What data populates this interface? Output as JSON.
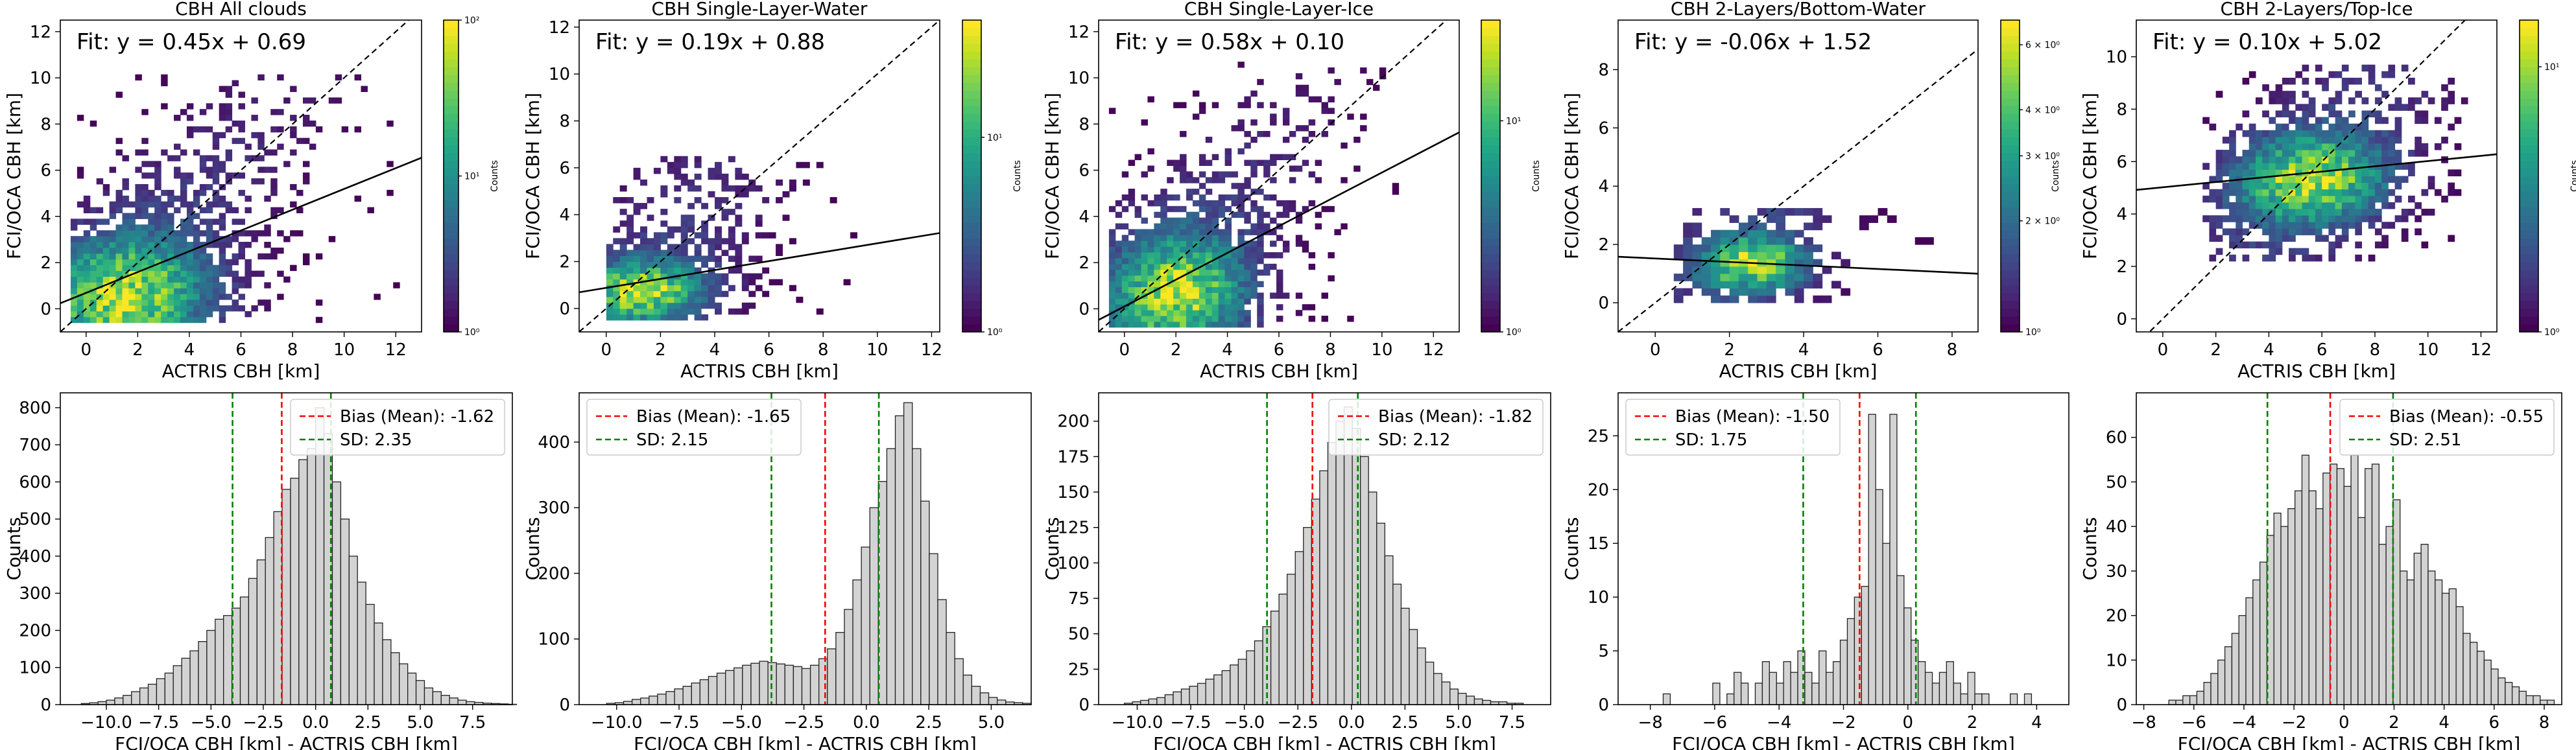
{
  "chart_data": [
    {
      "type": "heatmap",
      "title": "CBH All clouds",
      "xlabel": "ACTRIS CBH [km]",
      "ylabel": "FCI/OCA CBH [km]",
      "xlim": [
        -1,
        13
      ],
      "ylim": [
        -1,
        12.5
      ],
      "xticks": [
        0,
        2,
        4,
        6,
        8,
        10,
        12
      ],
      "yticks": [
        0,
        2,
        4,
        6,
        8,
        10,
        12
      ],
      "fit_label": "Fit: y = 0.45x + 0.69",
      "fit": {
        "slope": 0.45,
        "intercept": 0.69
      },
      "one_to_one_line": true,
      "cmap": "viridis",
      "color_scale": "log",
      "colorbar": {
        "label": "Counts",
        "ticks": [
          "10⁰",
          "10¹",
          "10²"
        ],
        "tick_values": [
          1,
          10,
          100
        ],
        "range": [
          1,
          100
        ]
      },
      "density": {
        "peak": [
          1.5,
          0.4
        ],
        "spread": [
          3.2,
          2.4
        ],
        "xrange": [
          -0.6,
          12.4
        ],
        "yrange": [
          -0.6,
          10
        ],
        "fill": 0.85
      }
    },
    {
      "type": "heatmap",
      "title": "CBH Single-Layer-Water",
      "xlabel": "ACTRIS CBH [km]",
      "ylabel": "FCI/OCA CBH [km]",
      "xlim": [
        -1,
        12.3
      ],
      "ylim": [
        -1,
        12.3
      ],
      "xticks": [
        0,
        2,
        4,
        6,
        8,
        10,
        12
      ],
      "yticks": [
        0,
        2,
        4,
        6,
        8,
        10,
        12
      ],
      "fit_label": "Fit: y = 0.19x + 0.88",
      "fit": {
        "slope": 0.19,
        "intercept": 0.88
      },
      "one_to_one_line": true,
      "cmap": "viridis",
      "color_scale": "log",
      "colorbar": {
        "label": "Counts",
        "ticks": [
          "10⁰",
          "10¹"
        ],
        "tick_values": [
          1,
          10
        ],
        "range": [
          1,
          40
        ]
      },
      "density": {
        "peak": [
          1.2,
          0.6
        ],
        "spread": [
          2.3,
          1.2
        ],
        "xrange": [
          0,
          10.5
        ],
        "yrange": [
          -0.5,
          6.5
        ],
        "fill": 0.7
      }
    },
    {
      "type": "heatmap",
      "title": "CBH Single-Layer-Ice",
      "xlabel": "ACTRIS CBH [km]",
      "ylabel": "FCI/OCA CBH [km]",
      "xlim": [
        -1,
        13
      ],
      "ylim": [
        -1,
        12.5
      ],
      "xticks": [
        0,
        2,
        4,
        6,
        8,
        10,
        12
      ],
      "yticks": [
        0,
        2,
        4,
        6,
        8,
        10,
        12
      ],
      "fit_label": "Fit: y = 0.58x + 0.10",
      "fit": {
        "slope": 0.58,
        "intercept": 0.1
      },
      "one_to_one_line": true,
      "cmap": "viridis",
      "color_scale": "log",
      "colorbar": {
        "label": "Counts",
        "ticks": [
          "10⁰",
          "10¹"
        ],
        "tick_values": [
          1,
          10
        ],
        "range": [
          1,
          30
        ]
      },
      "density": {
        "peak": [
          2.0,
          0.5
        ],
        "spread": [
          2.6,
          2.4
        ],
        "xrange": [
          -0.6,
          11
        ],
        "yrange": [
          -0.8,
          10.5
        ],
        "fill": 0.6
      }
    },
    {
      "type": "heatmap",
      "title": "CBH 2-Layers/Bottom-Water",
      "xlabel": "ACTRIS CBH [km]",
      "ylabel": "FCI/OCA CBH [km]",
      "xlim": [
        -1,
        8.7
      ],
      "ylim": [
        -1,
        9.7
      ],
      "xticks": [
        0,
        2,
        4,
        6,
        8
      ],
      "yticks": [
        0,
        2,
        4,
        6,
        8
      ],
      "fit_label": "Fit: y = -0.06x + 1.52",
      "fit": {
        "slope": -0.06,
        "intercept": 1.52
      },
      "one_to_one_line": true,
      "cmap": "viridis",
      "color_scale": "log",
      "colorbar": {
        "label": "Counts",
        "ticks": [
          "10⁰",
          "2 × 10⁰",
          "3 × 10⁰",
          "4 × 10⁰",
          "6 × 10⁰"
        ],
        "tick_values": [
          1,
          2,
          3,
          4,
          6
        ],
        "range": [
          1,
          7
        ]
      },
      "density": {
        "peak": [
          2.5,
          1.2
        ],
        "spread": [
          1.4,
          0.9
        ],
        "xrange": [
          0.5,
          7.3
        ],
        "yrange": [
          0,
          3.2
        ],
        "fill": 0.35
      }
    },
    {
      "type": "heatmap",
      "title": "CBH 2-Layers/Top-Ice",
      "xlabel": "ACTRIS CBH [km]",
      "ylabel": "FCI/OCA CBH [km]",
      "xlim": [
        -1,
        12.6
      ],
      "ylim": [
        -0.5,
        11.4
      ],
      "xticks": [
        0,
        2,
        4,
        6,
        8,
        10,
        12
      ],
      "yticks": [
        0,
        2,
        4,
        6,
        8,
        10
      ],
      "fit_label": "Fit: y = 0.10x + 5.02",
      "fit": {
        "slope": 0.1,
        "intercept": 5.02
      },
      "one_to_one_line": true,
      "cmap": "viridis",
      "color_scale": "log",
      "colorbar": {
        "label": "Counts",
        "ticks": [
          "10⁰",
          "10¹"
        ],
        "tick_values": [
          1,
          10
        ],
        "range": [
          1,
          15
        ]
      },
      "density": {
        "peak": [
          5.5,
          5.2
        ],
        "spread": [
          2.8,
          1.6
        ],
        "xrange": [
          1.5,
          11.5
        ],
        "yrange": [
          2.2,
          9.5
        ],
        "fill": 0.55
      }
    },
    {
      "type": "bar",
      "xlabel": "FCI/OCA CBH [km] - ACTRIS CBH [km]",
      "ylabel": "Counts",
      "xlim": [
        -12.2,
        9.4
      ],
      "ylim": [
        0,
        840
      ],
      "xticks": [
        -10.0,
        -7.5,
        -5.0,
        -2.5,
        0.0,
        2.5,
        5.0,
        7.5
      ],
      "xtick_labels": [
        "−10.0",
        "−7.5",
        "−5.0",
        "−2.5",
        "0.0",
        "2.5",
        "5.0",
        "7.5"
      ],
      "yticks": [
        0,
        100,
        200,
        300,
        400,
        500,
        600,
        700,
        800
      ],
      "bias": -1.62,
      "sd": 2.35,
      "legend": [
        {
          "label": "Bias (Mean): -1.62",
          "color": "#ff0000"
        },
        {
          "label": "SD: 2.35",
          "color": "#008000"
        }
      ],
      "legend_position": "top-right",
      "bin_start": -11.2,
      "bin_width": 0.4,
      "values": [
        3,
        5,
        8,
        12,
        18,
        25,
        35,
        45,
        55,
        70,
        85,
        105,
        125,
        145,
        170,
        200,
        230,
        240,
        260,
        290,
        340,
        390,
        450,
        520,
        580,
        610,
        660,
        690,
        800,
        730,
        600,
        500,
        400,
        330,
        270,
        220,
        175,
        140,
        110,
        85,
        65,
        45,
        35,
        25,
        18,
        12,
        8,
        6,
        4,
        3,
        2,
        1
      ]
    },
    {
      "type": "bar",
      "xlabel": "FCI/OCA CBH [km] - ACTRIS CBH [km]",
      "ylabel": "Counts",
      "xlim": [
        -11.5,
        6.6
      ],
      "ylim": [
        0,
        475
      ],
      "xticks": [
        -10.0,
        -7.5,
        -5.0,
        -2.5,
        0.0,
        2.5,
        5.0
      ],
      "xtick_labels": [
        "−10.0",
        "−7.5",
        "−5.0",
        "−2.5",
        "0.0",
        "2.5",
        "5.0"
      ],
      "yticks": [
        0,
        100,
        200,
        300,
        400
      ],
      "bias": -1.65,
      "sd": 2.15,
      "legend": [
        {
          "label": "Bias (Mean): -1.65",
          "color": "#ff0000"
        },
        {
          "label": "SD: 2.15",
          "color": "#008000"
        }
      ],
      "legend_position": "top-left",
      "bin_start": -10.4,
      "bin_width": 0.34,
      "values": [
        2,
        3,
        5,
        8,
        10,
        13,
        16,
        20,
        24,
        28,
        33,
        38,
        43,
        48,
        52,
        56,
        60,
        63,
        66,
        64,
        62,
        60,
        58,
        55,
        60,
        70,
        85,
        110,
        145,
        190,
        240,
        300,
        340,
        390,
        440,
        460,
        390,
        310,
        230,
        160,
        110,
        70,
        45,
        28,
        18,
        11,
        7,
        4,
        3,
        2
      ]
    },
    {
      "type": "bar",
      "xlabel": "FCI/OCA CBH [km] - ACTRIS CBH [km]",
      "ylabel": "Counts",
      "xlim": [
        -11.8,
        9.3
      ],
      "ylim": [
        0,
        220
      ],
      "xticks": [
        -10.0,
        -7.5,
        -5.0,
        -2.5,
        0.0,
        2.5,
        5.0,
        7.5
      ],
      "xtick_labels": [
        "−10.0",
        "−7.5",
        "−5.0",
        "−2.5",
        "0.0",
        "2.5",
        "5.0",
        "7.5"
      ],
      "yticks": [
        0,
        25,
        50,
        75,
        100,
        125,
        150,
        175,
        200
      ],
      "bias": -1.82,
      "sd": 2.12,
      "legend": [
        {
          "label": "Bias (Mean): -1.82",
          "color": "#ff0000"
        },
        {
          "label": "SD: 2.12",
          "color": "#008000"
        }
      ],
      "legend_position": "top-right",
      "bin_start": -10.6,
      "bin_width": 0.38,
      "values": [
        1,
        2,
        3,
        4,
        5,
        7,
        9,
        11,
        13,
        15,
        18,
        21,
        24,
        28,
        32,
        38,
        45,
        55,
        66,
        78,
        92,
        108,
        125,
        145,
        165,
        185,
        200,
        210,
        195,
        175,
        150,
        128,
        105,
        85,
        68,
        53,
        40,
        30,
        22,
        16,
        11,
        8,
        6,
        4,
        3,
        2,
        2,
        1,
        1
      ]
    },
    {
      "type": "bar",
      "xlabel": "FCI/OCA CBH [km] - ACTRIS CBH [km]",
      "ylabel": "Counts",
      "xlim": [
        -9,
        5
      ],
      "ylim": [
        0,
        29
      ],
      "xticks": [
        -8,
        -6,
        -4,
        -2,
        0,
        2,
        4
      ],
      "xtick_labels": [
        "−8",
        "−6",
        "−4",
        "−2",
        "0",
        "2",
        "4"
      ],
      "yticks": [
        0,
        5,
        10,
        15,
        20,
        25
      ],
      "bias": -1.5,
      "sd": 1.75,
      "legend": [
        {
          "label": "Bias (Mean): -1.50",
          "color": "#ff0000"
        },
        {
          "label": "SD: 1.75",
          "color": "#008000"
        }
      ],
      "legend_position": "top-left",
      "bin_start": -7.6,
      "bin_width": 0.22,
      "values": [
        1,
        0,
        0,
        0,
        0,
        0,
        0,
        2,
        0,
        1,
        3,
        2,
        0,
        2,
        4,
        3,
        2,
        4,
        3,
        5,
        3,
        2,
        5,
        3,
        4,
        6,
        8,
        10,
        11,
        27,
        20,
        15,
        27,
        12,
        9,
        6,
        4,
        3,
        2,
        3,
        4,
        2,
        1,
        3,
        1,
        1,
        0,
        0,
        0,
        1,
        0,
        1
      ]
    },
    {
      "type": "bar",
      "xlabel": "FCI/OCA CBH [km] - ACTRIS CBH [km]",
      "ylabel": "Counts",
      "xlim": [
        -8.3,
        8.7
      ],
      "ylim": [
        0,
        70
      ],
      "xticks": [
        -8,
        -6,
        -4,
        -2,
        0,
        2,
        4,
        6,
        8
      ],
      "xtick_labels": [
        "−8",
        "−6",
        "−4",
        "−2",
        "0",
        "2",
        "4",
        "6",
        "8"
      ],
      "yticks": [
        0,
        10,
        20,
        30,
        40,
        50,
        60
      ],
      "bias": -0.55,
      "sd": 2.51,
      "legend": [
        {
          "label": "Bias (Mean): -0.55",
          "color": "#ff0000"
        },
        {
          "label": "SD: 2.51",
          "color": "#008000"
        }
      ],
      "legend_position": "top-right",
      "bin_start": -7.0,
      "bin_width": 0.28,
      "values": [
        1,
        1,
        2,
        2,
        3,
        5,
        7,
        10,
        13,
        16,
        20,
        24,
        28,
        32,
        38,
        43,
        40,
        44,
        48,
        56,
        48,
        44,
        52,
        54,
        53,
        49,
        56,
        42,
        53,
        54,
        36,
        40,
        46,
        30,
        28,
        34,
        36,
        30,
        28,
        25,
        26,
        22,
        16,
        14,
        12,
        10,
        8,
        6,
        5,
        4,
        3,
        2,
        2,
        1,
        1
      ]
    }
  ]
}
